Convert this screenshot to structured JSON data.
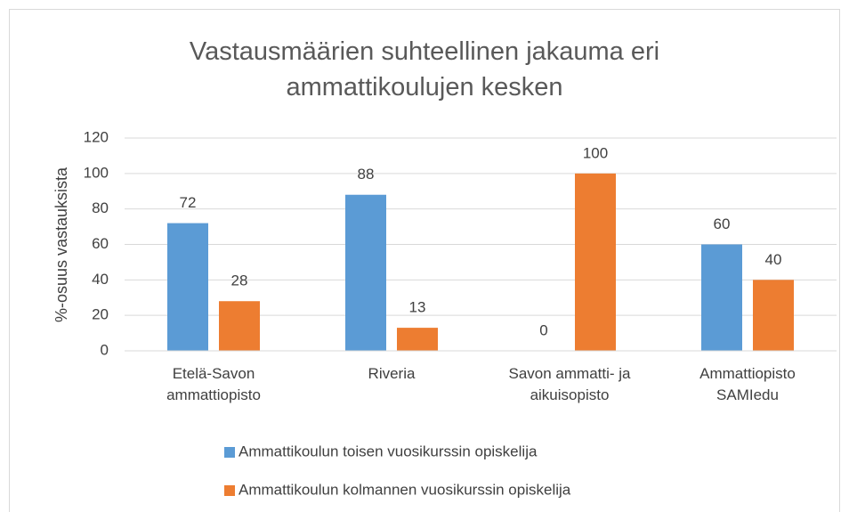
{
  "chart_data": {
    "type": "bar",
    "title": "Vastausmäärien suhteellinen jakauma eri ammattikoulujen kesken",
    "y_label": "%-osuus vastauksista",
    "categories": [
      "Etelä-Savon ammattiopisto",
      "Riveria",
      "Savon ammatti- ja aikuisopisto",
      "Ammattiopisto SAMIedu"
    ],
    "series": [
      {
        "name": "Ammattikoulun toisen vuosikurssin opiskelija",
        "color": "#5b9bd5",
        "values": [
          72,
          88,
          0,
          60
        ]
      },
      {
        "name": "Ammattikoulun kolmannen vuosikurssin opiskelija",
        "color": "#ed7d31",
        "values": [
          28,
          13,
          100,
          40
        ]
      }
    ],
    "ylim": [
      0,
      120
    ],
    "yticks": [
      0,
      20,
      40,
      60,
      80,
      100,
      120
    ],
    "grid": true,
    "legend": "bottom"
  }
}
